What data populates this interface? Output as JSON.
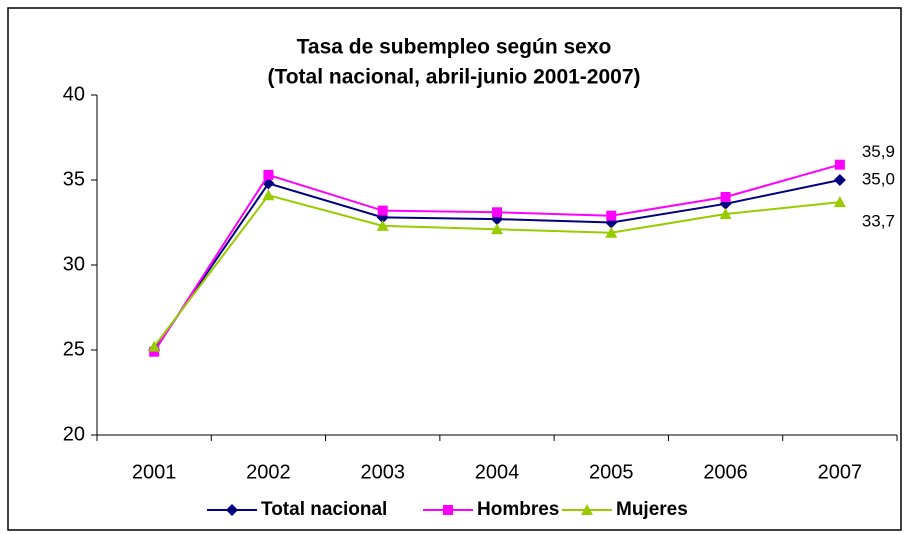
{
  "chart_data": {
    "type": "line",
    "title": "Tasa de subempleo según sexo",
    "subtitle": "(Total nacional, abril-junio 2001-2007)",
    "categories": [
      "2001",
      "2002",
      "2003",
      "2004",
      "2005",
      "2006",
      "2007"
    ],
    "series": [
      {
        "name": "Total nacional",
        "color": "#000080",
        "marker": "diamond",
        "values": [
          25.0,
          34.8,
          32.8,
          32.7,
          32.5,
          33.6,
          35.0
        ],
        "value_labels": [
          null,
          null,
          null,
          null,
          null,
          null,
          "35,0"
        ]
      },
      {
        "name": "Hombres",
        "color": "#ff00ff",
        "marker": "square",
        "values": [
          24.9,
          35.3,
          33.2,
          33.1,
          32.9,
          34.0,
          35.9
        ],
        "value_labels": [
          null,
          null,
          null,
          null,
          null,
          null,
          "35,9"
        ]
      },
      {
        "name": "Mujeres",
        "color": "#99cc00",
        "marker": "triangle",
        "values": [
          25.2,
          34.1,
          32.3,
          32.1,
          31.9,
          33.0,
          33.7
        ],
        "value_labels": [
          null,
          null,
          null,
          null,
          null,
          null,
          "33,7"
        ]
      }
    ],
    "ylim": [
      20,
      40
    ],
    "yticks": [
      20,
      25,
      30,
      35,
      40
    ],
    "grid": false,
    "legend": "bottom"
  }
}
